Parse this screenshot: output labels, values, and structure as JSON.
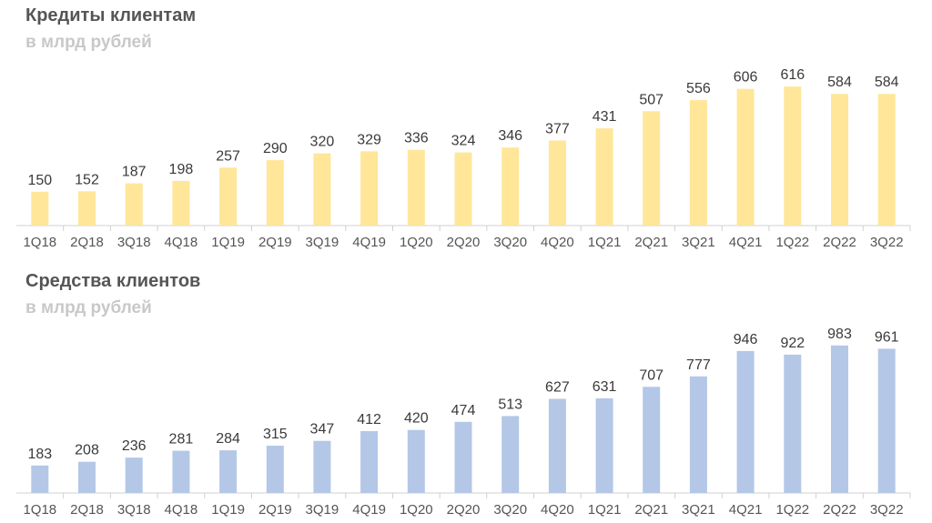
{
  "chart_data": [
    {
      "type": "bar",
      "title": "Кредиты клиентам",
      "subtitle": "в млрд рублей",
      "categories": [
        "1Q18",
        "2Q18",
        "3Q18",
        "4Q18",
        "1Q19",
        "2Q19",
        "3Q19",
        "4Q19",
        "1Q20",
        "2Q20",
        "3Q20",
        "4Q20",
        "1Q21",
        "2Q21",
        "3Q21",
        "4Q21",
        "1Q22",
        "2Q22",
        "3Q22"
      ],
      "values": [
        150,
        152,
        187,
        198,
        257,
        290,
        320,
        329,
        336,
        324,
        346,
        377,
        431,
        507,
        556,
        606,
        616,
        584,
        584
      ],
      "color": "#FFE699",
      "grid": false,
      "legend": "none"
    },
    {
      "type": "bar",
      "title": "Средства клиентов",
      "subtitle": "в млрд рублей",
      "categories": [
        "1Q18",
        "2Q18",
        "3Q18",
        "4Q18",
        "1Q19",
        "2Q19",
        "3Q19",
        "4Q19",
        "1Q20",
        "2Q20",
        "3Q20",
        "4Q20",
        "1Q21",
        "2Q21",
        "3Q21",
        "4Q21",
        "1Q22",
        "2Q22",
        "3Q22"
      ],
      "values": [
        183,
        208,
        236,
        281,
        284,
        315,
        347,
        412,
        420,
        474,
        513,
        627,
        631,
        707,
        777,
        946,
        922,
        983,
        961
      ],
      "color": "#B4C7E7",
      "grid": false,
      "legend": "none"
    }
  ]
}
